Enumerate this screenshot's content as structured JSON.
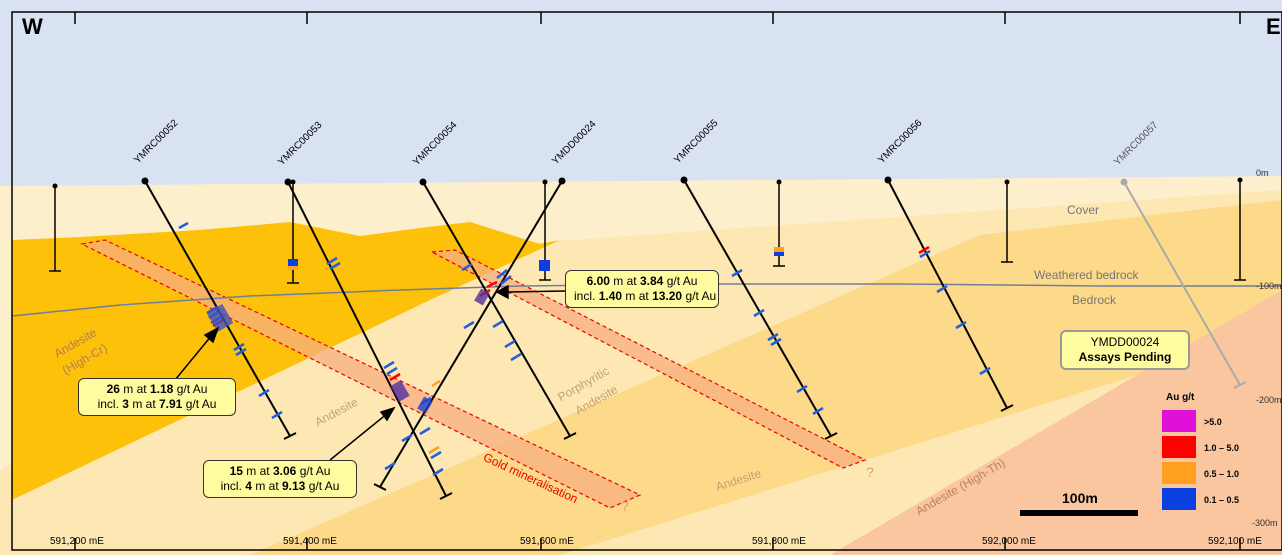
{
  "compass": {
    "west": "W",
    "east": "E"
  },
  "depth_labels": [
    "0m",
    "-100m",
    "-200m",
    "-300m"
  ],
  "easting_labels": [
    "591,200 mE",
    "591,400 mE",
    "591,600 mE",
    "591,800 mE",
    "592,000 mE",
    "592,100 mE"
  ],
  "drillholes": [
    "YMRC00052",
    "YMRC00053",
    "YMRC00054",
    "YMDD00024",
    "YMRC00055",
    "YMRC00056",
    "YMRC00057"
  ],
  "units": {
    "cover": "Cover",
    "weathered": "Weathered bedrock",
    "bedrock": "Bedrock",
    "andesite_high_cr_1": "Andesite",
    "andesite_high_cr_2": "(High-Cr)",
    "andesite_1": "Andesite",
    "porphyritic_1": "Porphyritic",
    "porphyritic_2": "Andesite",
    "andesite_2": "Andesite",
    "andesite_high_th": "Andesite (High-Th)",
    "gold_min": "Gold mineralisation",
    "query": "?"
  },
  "callouts": {
    "c1_len": "26",
    "c1_grade": "1.18",
    "c1_incl_len": "3",
    "c1_incl_grade": "7.91",
    "c2_len": "15",
    "c2_grade": "3.06",
    "c2_incl_len": "4",
    "c2_incl_grade": "9.13",
    "c3_len": "6.00",
    "c3_grade": "3.84",
    "c3_incl_len": "1.40",
    "c3_incl_grade": "13.20",
    "m_at": "m at",
    "gt_au": "g/t Au",
    "incl": "incl."
  },
  "pending": {
    "hole": "YMDD00024",
    "status": "Assays Pending"
  },
  "legend": {
    "title": "Au g/t",
    "items": [
      {
        "label": ">5.0",
        "color": "#e010d8"
      },
      {
        "label": "1.0 – 5.0",
        "color": "#ff0000"
      },
      {
        "label": "0.5 – 1.0",
        "color": "#ffa020"
      },
      {
        "label": "0.1 – 0.5",
        "color": "#0b3fe0"
      }
    ]
  },
  "scale_bar": "100m",
  "colors": {
    "sky": "#d9e2f3",
    "cover": "#fdefcc",
    "andesite_high_cr": "#fdc10a",
    "porphyritic": "#fde0a0",
    "andesite": "#fdf0c8",
    "high_th": "#f9c6a0",
    "mineralisation": "#f5a87a",
    "drill": "#000000",
    "assay_blue": "#1f5fe0"
  }
}
